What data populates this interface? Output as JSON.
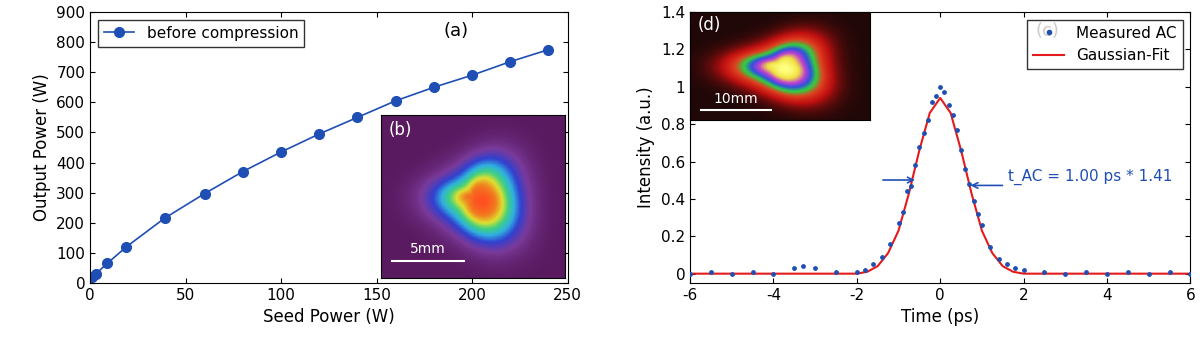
{
  "chart_data": [
    {
      "type": "line",
      "x_label": "Seed Power (W)",
      "y_label": "Output Power (W)",
      "annotations": [
        "(a)"
      ],
      "inset_label": "(b)",
      "inset_scale_bar": "5mm",
      "series": [
        {
          "name": "before compression",
          "color": "#1f4fb4",
          "marker": "o",
          "line_style": "solid",
          "x": [
            1,
            3,
            9,
            19,
            39,
            60,
            80,
            100,
            120,
            140,
            160,
            180,
            200,
            220,
            240
          ],
          "values": [
            20,
            30,
            65,
            120,
            215,
            297,
            370,
            435,
            495,
            550,
            605,
            650,
            690,
            735,
            775
          ]
        }
      ],
      "xlim": [
        0,
        250
      ],
      "xticks": [
        0,
        50,
        100,
        150,
        200,
        250
      ],
      "ylim": [
        0,
        900
      ],
      "yticks": [
        0,
        100,
        200,
        300,
        400,
        500,
        600,
        700,
        800,
        900
      ],
      "legend": "upper left"
    },
    {
      "type": "scatter",
      "x_label": "Time (ps)",
      "y_label": "Intensity (a.u.)",
      "annotations": [
        "(c)",
        "t_AC = 1.00 ps * 1.41"
      ],
      "inset_label": "(d)",
      "inset_scale_bar": "10mm",
      "series": [
        {
          "name": "Measured AC",
          "type": "scatter",
          "color": "#1f4fb4",
          "marker": "o",
          "x": [
            -6,
            -5.5,
            -5,
            -4.5,
            -4,
            -3.5,
            -3.3,
            -3,
            -2.5,
            -2,
            -1.8,
            -1.6,
            -1.4,
            -1.2,
            -1.0,
            -0.9,
            -0.8,
            -0.7,
            -0.6,
            -0.5,
            -0.4,
            -0.3,
            -0.2,
            -0.1,
            0,
            0.1,
            0.2,
            0.3,
            0.4,
            0.5,
            0.6,
            0.7,
            0.8,
            0.9,
            1.0,
            1.2,
            1.4,
            1.6,
            1.8,
            2,
            2.5,
            3,
            3.5,
            4,
            4.5,
            5,
            5.5,
            6
          ],
          "values": [
            0.0,
            0.01,
            0.0,
            0.01,
            0.0,
            0.03,
            0.04,
            0.03,
            0.01,
            0.01,
            0.02,
            0.05,
            0.09,
            0.16,
            0.27,
            0.33,
            0.44,
            0.47,
            0.58,
            0.68,
            0.75,
            0.82,
            0.92,
            0.95,
            1.0,
            0.97,
            0.9,
            0.85,
            0.77,
            0.66,
            0.56,
            0.48,
            0.39,
            0.32,
            0.26,
            0.14,
            0.08,
            0.05,
            0.03,
            0.02,
            0.01,
            0.0,
            0.01,
            0.0,
            0.01,
            0.0,
            0.01,
            0.0
          ]
        },
        {
          "name": "Gaussian-Fit",
          "type": "line",
          "color": "#e41a1c",
          "line_style": "solid",
          "x": [
            -6,
            -3,
            -2,
            -1.75,
            -1.5,
            -1.25,
            -1,
            -0.75,
            -0.5,
            -0.25,
            0,
            0.25,
            0.5,
            0.75,
            1,
            1.25,
            1.5,
            1.75,
            2,
            3,
            6
          ],
          "values": [
            0,
            0,
            0.0,
            0.01,
            0.04,
            0.11,
            0.23,
            0.43,
            0.66,
            0.86,
            0.94,
            0.86,
            0.66,
            0.43,
            0.23,
            0.11,
            0.04,
            0.01,
            0.0,
            0,
            0
          ]
        }
      ],
      "xlim": [
        -6,
        6
      ],
      "xticks": [
        -6,
        -4,
        -2,
        0,
        2,
        4,
        6
      ],
      "ylim": [
        -0.05,
        1.4
      ],
      "yticks": [
        0,
        0.2,
        0.4,
        0.6,
        0.8,
        1,
        1.2,
        1.4
      ],
      "legend": "upper right"
    }
  ]
}
